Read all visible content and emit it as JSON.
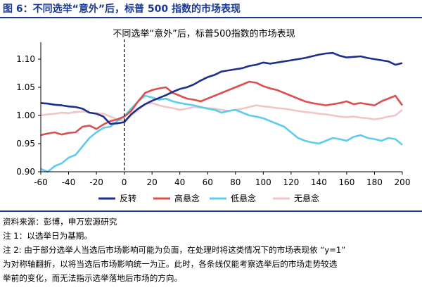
{
  "figure": {
    "title": "图 6：不同选举“意外”后，标普 500 指数的市场表现"
  },
  "chart_data": {
    "type": "line",
    "title": "不同选举“意外”后，标普500指数的市场表现",
    "xlabel": "",
    "ylabel": "",
    "xlim": [
      -60,
      200
    ],
    "ylim": [
      0.9,
      1.12
    ],
    "x_ticks": [
      "-60",
      "-40",
      "-20",
      "0",
      "20",
      "40",
      "60",
      "80",
      "100",
      "120",
      "140",
      "160",
      "180",
      "200"
    ],
    "y_ticks": [
      "0.90",
      "0.95",
      "1.00",
      "1.05",
      "1.10"
    ],
    "grid": false,
    "legend_position": "bottom",
    "event_line_x": 0,
    "series": [
      {
        "name": "反转",
        "color": "#1c2f8a",
        "points": [
          [
            -60,
            1.022
          ],
          [
            -55,
            1.021
          ],
          [
            -50,
            1.019
          ],
          [
            -45,
            1.018
          ],
          [
            -40,
            1.016
          ],
          [
            -35,
            1.015
          ],
          [
            -30,
            1.012
          ],
          [
            -25,
            1.005
          ],
          [
            -20,
            1.003
          ],
          [
            -15,
            0.998
          ],
          [
            -10,
            0.985
          ],
          [
            -5,
            0.986
          ],
          [
            0,
            0.988
          ],
          [
            5,
            1.002
          ],
          [
            10,
            1.012
          ],
          [
            15,
            1.02
          ],
          [
            20,
            1.026
          ],
          [
            25,
            1.031
          ],
          [
            30,
            1.036
          ],
          [
            35,
            1.042
          ],
          [
            40,
            1.047
          ],
          [
            45,
            1.05
          ],
          [
            50,
            1.055
          ],
          [
            55,
            1.062
          ],
          [
            60,
            1.068
          ],
          [
            65,
            1.072
          ],
          [
            70,
            1.078
          ],
          [
            75,
            1.08
          ],
          [
            80,
            1.082
          ],
          [
            85,
            1.084
          ],
          [
            90,
            1.088
          ],
          [
            95,
            1.09
          ],
          [
            100,
            1.094
          ],
          [
            105,
            1.092
          ],
          [
            110,
            1.094
          ],
          [
            115,
            1.096
          ],
          [
            120,
            1.098
          ],
          [
            125,
            1.1
          ],
          [
            130,
            1.102
          ],
          [
            135,
            1.105
          ],
          [
            140,
            1.108
          ],
          [
            145,
            1.11
          ],
          [
            150,
            1.111
          ],
          [
            155,
            1.106
          ],
          [
            160,
            1.103
          ],
          [
            165,
            1.104
          ],
          [
            170,
            1.105
          ],
          [
            175,
            1.102
          ],
          [
            180,
            1.1
          ],
          [
            185,
            1.098
          ],
          [
            190,
            1.096
          ],
          [
            195,
            1.09
          ],
          [
            200,
            1.093
          ]
        ]
      },
      {
        "name": "高悬念",
        "color": "#d9504f",
        "points": [
          [
            -60,
            0.965
          ],
          [
            -55,
            0.968
          ],
          [
            -50,
            0.97
          ],
          [
            -45,
            0.966
          ],
          [
            -40,
            0.969
          ],
          [
            -35,
            0.97
          ],
          [
            -30,
            0.98
          ],
          [
            -25,
            0.982
          ],
          [
            -20,
            0.976
          ],
          [
            -15,
            0.984
          ],
          [
            -10,
            0.99
          ],
          [
            -5,
            0.993
          ],
          [
            0,
            0.998
          ],
          [
            5,
            1.008
          ],
          [
            10,
            1.025
          ],
          [
            15,
            1.04
          ],
          [
            20,
            1.045
          ],
          [
            25,
            1.048
          ],
          [
            30,
            1.05
          ],
          [
            35,
            1.04
          ],
          [
            40,
            1.035
          ],
          [
            45,
            1.03
          ],
          [
            50,
            1.028
          ],
          [
            55,
            1.025
          ],
          [
            60,
            1.03
          ],
          [
            65,
            1.035
          ],
          [
            70,
            1.04
          ],
          [
            75,
            1.045
          ],
          [
            80,
            1.05
          ],
          [
            85,
            1.055
          ],
          [
            90,
            1.06
          ],
          [
            95,
            1.058
          ],
          [
            100,
            1.052
          ],
          [
            105,
            1.048
          ],
          [
            110,
            1.045
          ],
          [
            115,
            1.04
          ],
          [
            120,
            1.035
          ],
          [
            125,
            1.03
          ],
          [
            130,
            1.025
          ],
          [
            135,
            1.022
          ],
          [
            140,
            1.02
          ],
          [
            145,
            1.018
          ],
          [
            150,
            1.02
          ],
          [
            155,
            1.022
          ],
          [
            160,
            1.025
          ],
          [
            165,
            1.02
          ],
          [
            170,
            1.022
          ],
          [
            175,
            1.02
          ],
          [
            180,
            1.018
          ],
          [
            185,
            1.025
          ],
          [
            190,
            1.03
          ],
          [
            195,
            1.035
          ],
          [
            200,
            1.018
          ]
        ]
      },
      {
        "name": "低悬念",
        "color": "#5ecbf0",
        "points": [
          [
            -60,
            0.905
          ],
          [
            -55,
            0.9
          ],
          [
            -50,
            0.91
          ],
          [
            -45,
            0.915
          ],
          [
            -40,
            0.925
          ],
          [
            -35,
            0.93
          ],
          [
            -30,
            0.945
          ],
          [
            -25,
            0.96
          ],
          [
            -20,
            0.97
          ],
          [
            -15,
            0.978
          ],
          [
            -10,
            0.98
          ],
          [
            -5,
            0.99
          ],
          [
            0,
            0.998
          ],
          [
            5,
            1.012
          ],
          [
            10,
            1.025
          ],
          [
            15,
            1.035
          ],
          [
            20,
            1.032
          ],
          [
            25,
            1.028
          ],
          [
            30,
            1.03
          ],
          [
            35,
            1.025
          ],
          [
            40,
            1.022
          ],
          [
            45,
            1.02
          ],
          [
            50,
            1.018
          ],
          [
            55,
            1.015
          ],
          [
            60,
            1.012
          ],
          [
            65,
            1.01
          ],
          [
            70,
            1.005
          ],
          [
            75,
            1.008
          ],
          [
            80,
            1.01
          ],
          [
            85,
            1.005
          ],
          [
            90,
            1.0
          ],
          [
            95,
            0.998
          ],
          [
            100,
            0.995
          ],
          [
            105,
            0.99
          ],
          [
            110,
            0.985
          ],
          [
            115,
            0.98
          ],
          [
            120,
            0.97
          ],
          [
            125,
            0.96
          ],
          [
            130,
            0.955
          ],
          [
            135,
            0.952
          ],
          [
            140,
            0.95
          ],
          [
            145,
            0.955
          ],
          [
            150,
            0.96
          ],
          [
            155,
            0.958
          ],
          [
            160,
            0.955
          ],
          [
            165,
            0.962
          ],
          [
            170,
            0.965
          ],
          [
            175,
            0.96
          ],
          [
            180,
            0.958
          ],
          [
            185,
            0.955
          ],
          [
            190,
            0.96
          ],
          [
            195,
            0.958
          ],
          [
            200,
            0.948
          ]
        ]
      },
      {
        "name": "无悬念",
        "color": "#f3c4c6",
        "points": [
          [
            -60,
            1.0
          ],
          [
            -55,
            1.002
          ],
          [
            -50,
            1.003
          ],
          [
            -45,
            1.005
          ],
          [
            -40,
            1.004
          ],
          [
            -35,
            1.006
          ],
          [
            -30,
            1.007
          ],
          [
            -25,
            1.005
          ],
          [
            -20,
            1.004
          ],
          [
            -15,
            1.003
          ],
          [
            -10,
            0.998
          ],
          [
            -5,
            0.993
          ],
          [
            0,
            0.99
          ],
          [
            5,
            1.0
          ],
          [
            10,
            1.01
          ],
          [
            15,
            1.02
          ],
          [
            20,
            1.022
          ],
          [
            25,
            1.018
          ],
          [
            30,
            1.015
          ],
          [
            35,
            1.013
          ],
          [
            40,
            1.01
          ],
          [
            45,
            1.012
          ],
          [
            50,
            1.015
          ],
          [
            55,
            1.014
          ],
          [
            60,
            1.013
          ],
          [
            65,
            1.012
          ],
          [
            70,
            1.01
          ],
          [
            75,
            1.008
          ],
          [
            80,
            1.01
          ],
          [
            85,
            1.012
          ],
          [
            90,
            1.015
          ],
          [
            95,
            1.018
          ],
          [
            100,
            1.016
          ],
          [
            105,
            1.015
          ],
          [
            110,
            1.013
          ],
          [
            115,
            1.012
          ],
          [
            120,
            1.01
          ],
          [
            125,
            1.008
          ],
          [
            130,
            1.006
          ],
          [
            135,
            1.005
          ],
          [
            140,
            1.003
          ],
          [
            145,
            1.002
          ],
          [
            150,
            1.0
          ],
          [
            155,
            0.998
          ],
          [
            160,
            0.997
          ],
          [
            165,
            0.998
          ],
          [
            170,
            0.996
          ],
          [
            175,
            0.995
          ],
          [
            180,
            0.993
          ],
          [
            185,
            0.995
          ],
          [
            190,
            0.998
          ],
          [
            195,
            1.0
          ],
          [
            200,
            1.01
          ]
        ]
      }
    ]
  },
  "notes": {
    "source": "资料来源：彭博，申万宏源研究",
    "note1": "注 1：以选举日为基期。",
    "note2_line1": "注 2: 由于部分选举人当选后市场影响可能为负面，在处理时将这类情况下的市场表现依 “y=1”",
    "note2_line2": "为对称轴翻折，以将当选后市场影响统一为正。此时，各条线仅能考察选举后的市场走势较选",
    "note2_line3": "举前的变化，而无法指示选举落地后市场的方向。"
  }
}
